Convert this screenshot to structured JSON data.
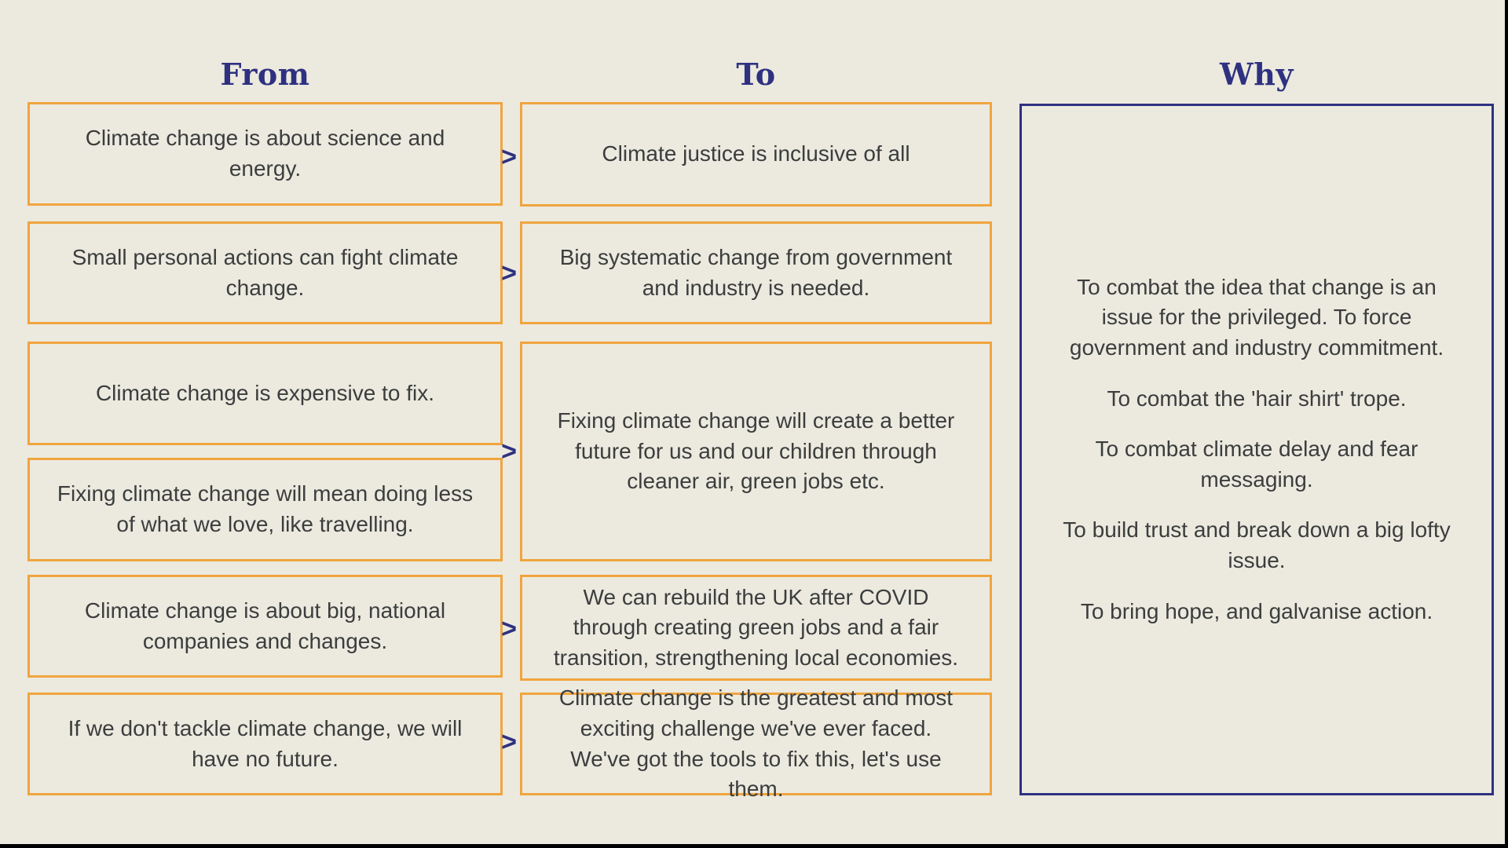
{
  "colors": {
    "background": "#ECE9DF",
    "box_border_orange": "#F0A53E",
    "accent_navy": "#2E3180",
    "body_text": "#3B3E3D"
  },
  "headers": {
    "from": "From",
    "to": "To",
    "why": "Why"
  },
  "arrow_glyph": ">",
  "from_boxes": [
    {
      "text": "Climate change is about science and energy."
    },
    {
      "text": "Small personal actions can fight climate change."
    },
    {
      "text": "Climate change is expensive to fix."
    },
    {
      "text": "Fixing climate change will mean doing less of what we love, like travelling."
    },
    {
      "text": "Climate change is about big, national companies and changes."
    },
    {
      "text": "If we don't tackle climate change, we will have no future."
    }
  ],
  "to_boxes": [
    {
      "text": "Climate justice is inclusive of all"
    },
    {
      "text": "Big systematic change from government and industry is needed."
    },
    {
      "text": "Fixing climate change will create a better future for us and our children through cleaner air, green jobs etc."
    },
    {
      "text": "We can rebuild the UK after COVID through creating green jobs and a fair transition, strengthening local economies."
    },
    {
      "text": "Climate change is the greatest and most exciting challenge we've ever faced. We've got the tools to fix this, let's use them."
    }
  ],
  "why_points": [
    "To combat the idea that change is an issue for the privileged. To force government and industry commitment.",
    "To combat the 'hair shirt' trope.",
    "To combat climate delay and fear messaging.",
    "To build trust and break down a big lofty issue.",
    "To bring hope, and galvanise action."
  ]
}
